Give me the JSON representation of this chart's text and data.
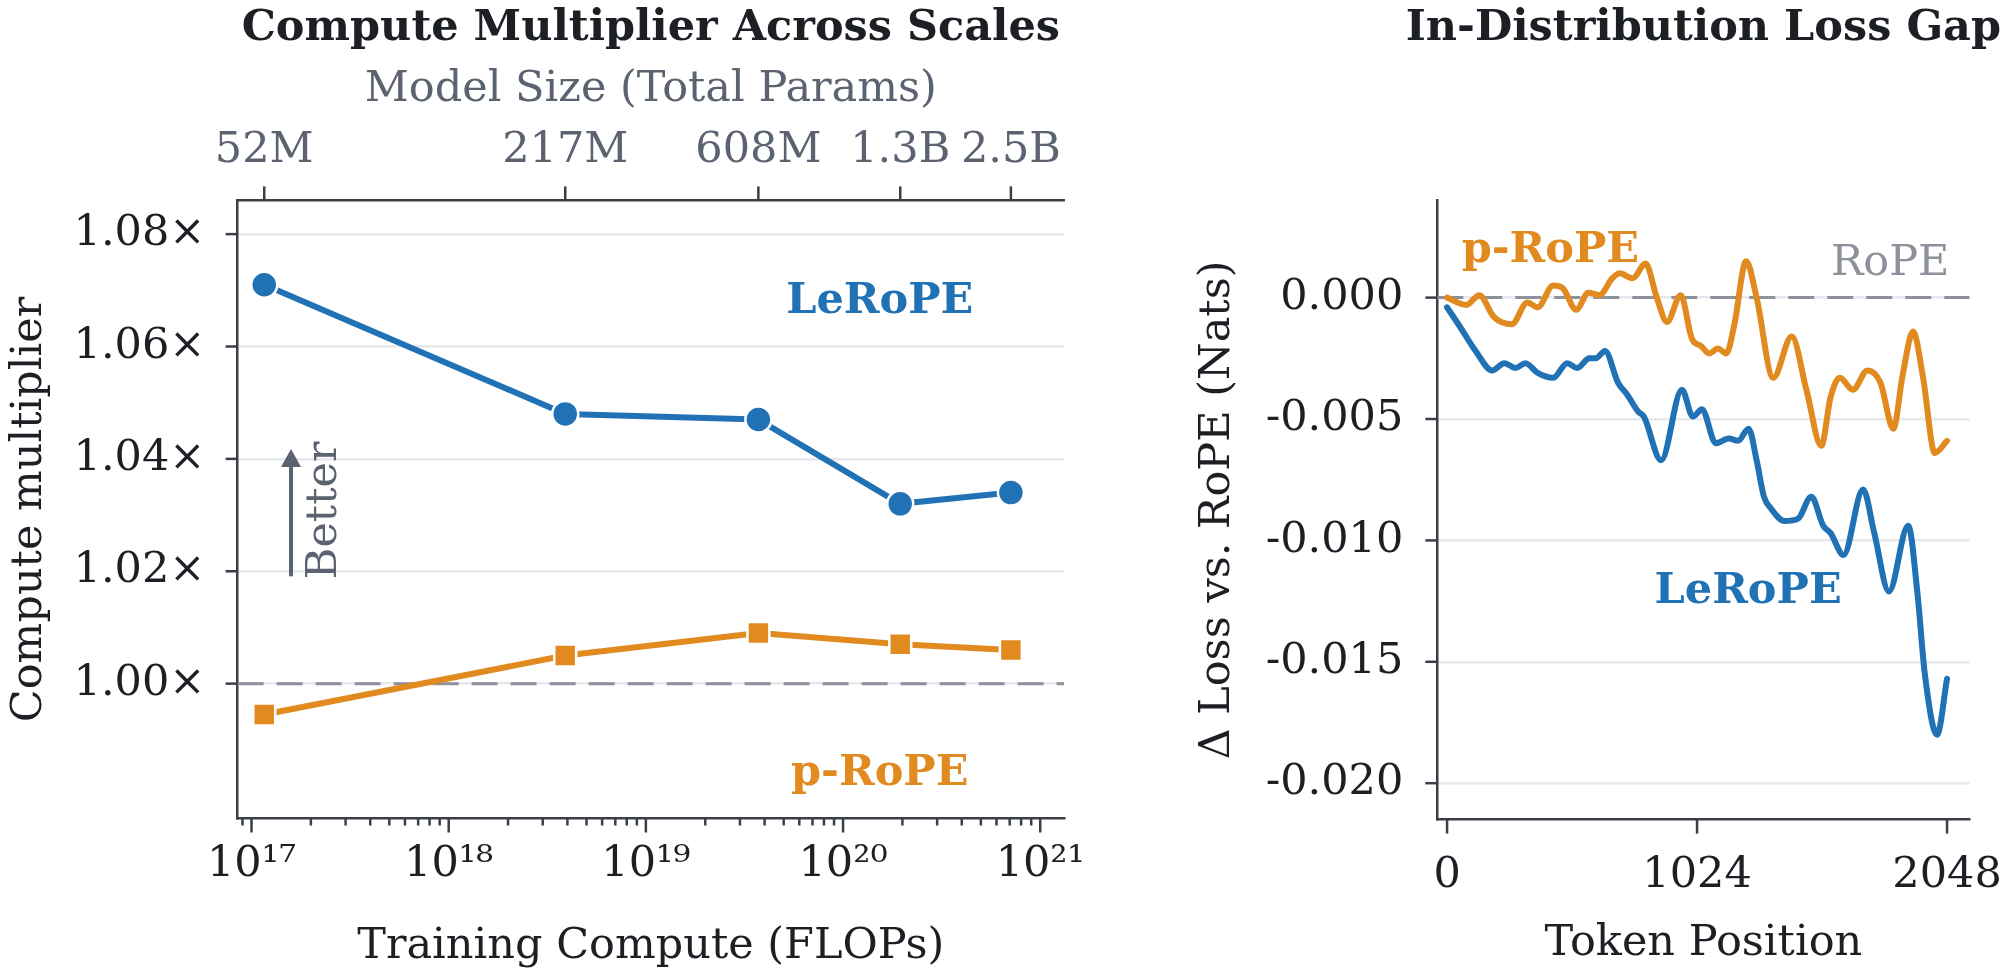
{
  "chart_data": [
    {
      "type": "line",
      "title": "Compute Multiplier Across Scales",
      "xlabel": "Training Compute (FLOPs)",
      "ylabel": "Compute multiplier",
      "x2label": "Model Size (Total Params)",
      "x": [
        1.16e+17,
        3.9e+18,
        3.72e+19,
        1.95e+20,
        7.1e+20
      ],
      "series": [
        {
          "name": "LeRoPE",
          "color": "#2171b5",
          "marker": "circle",
          "values": [
            1.071,
            1.048,
            1.047,
            1.032,
            1.034
          ]
        },
        {
          "name": "p-RoPE",
          "color": "#e08a1f",
          "marker": "square",
          "values": [
            0.9945,
            1.005,
            1.009,
            1.007,
            1.006
          ]
        }
      ],
      "log": "x",
      "xlim": [
        8.5e+16,
        1.32e+21
      ],
      "xticks": [
        {
          "value": 9e+16,
          "label": null
        },
        {
          "value": 1e+17,
          "label": "10¹⁷"
        },
        {
          "value": 2e+17,
          "label": null
        },
        {
          "value": 3e+17,
          "label": null
        },
        {
          "value": 4e+17,
          "label": null
        },
        {
          "value": 5e+17,
          "label": null
        },
        {
          "value": 6e+17,
          "label": null
        },
        {
          "value": 7e+17,
          "label": null
        },
        {
          "value": 8e+17,
          "label": null
        },
        {
          "value": 9e+17,
          "label": null
        },
        {
          "value": 1e+18,
          "label": "10¹⁸"
        },
        {
          "value": 2e+18,
          "label": null
        },
        {
          "value": 3e+18,
          "label": null
        },
        {
          "value": 4e+18,
          "label": null
        },
        {
          "value": 5e+18,
          "label": null
        },
        {
          "value": 6e+18,
          "label": null
        },
        {
          "value": 7e+18,
          "label": null
        },
        {
          "value": 8e+18,
          "label": null
        },
        {
          "value": 9e+18,
          "label": null
        },
        {
          "value": 1e+19,
          "label": "10¹⁹"
        },
        {
          "value": 2e+19,
          "label": null
        },
        {
          "value": 3e+19,
          "label": null
        },
        {
          "value": 4e+19,
          "label": null
        },
        {
          "value": 5e+19,
          "label": null
        },
        {
          "value": 6e+19,
          "label": null
        },
        {
          "value": 7e+19,
          "label": null
        },
        {
          "value": 8e+19,
          "label": null
        },
        {
          "value": 9e+19,
          "label": null
        },
        {
          "value": 1e+20,
          "label": "10²⁰"
        },
        {
          "value": 2e+20,
          "label": null
        },
        {
          "value": 3e+20,
          "label": null
        },
        {
          "value": 4e+20,
          "label": null
        },
        {
          "value": 5e+20,
          "label": null
        },
        {
          "value": 6e+20,
          "label": null
        },
        {
          "value": 7e+20,
          "label": null
        },
        {
          "value": 8e+20,
          "label": null
        },
        {
          "value": 9e+20,
          "label": null
        },
        {
          "value": 1e+21,
          "label": "10²¹"
        }
      ],
      "ylim": [
        0.976,
        1.086
      ],
      "yticks": [
        {
          "value": 1,
          "label": "1.00×"
        },
        {
          "value": 1.02,
          "label": "1.02×"
        },
        {
          "value": 1.04,
          "label": "1.04×"
        },
        {
          "value": 1.06,
          "label": "1.06×"
        },
        {
          "value": 1.08,
          "label": "1.08×"
        }
      ],
      "grid": "y",
      "ref_lines": [
        {
          "axis": "y",
          "value": 1,
          "color": "#8c919b",
          "line_style": "dashed"
        }
      ],
      "annotations": [
        "Better",
        {
          "text": "52M",
          "x": 1.16e+17
        },
        {
          "text": "217M",
          "x": 3.9e+18
        },
        {
          "text": "608M",
          "x": 3.72e+19
        },
        {
          "text": "1.3B",
          "x": 1.95e+20
        },
        {
          "text": "2.5B",
          "x": 7.1e+20
        }
      ]
    },
    {
      "type": "line",
      "title": "In-Distribution Loss Gap",
      "xlabel": "Token Position",
      "ylabel": "Δ Loss vs. RoPE (Nats)",
      "marker": "none",
      "series": [
        {
          "name": "LeRoPE",
          "color": "#2171b5",
          "x": [
            0,
            53,
            117,
            185,
            235,
            280,
            321,
            371,
            435,
            492,
            533,
            583,
            609,
            647,
            700,
            738,
            783,
            806,
            877,
            962,
            1007,
            1044,
            1101,
            1154,
            1192,
            1235,
            1268,
            1298,
            1328,
            1381,
            1438,
            1492,
            1541,
            1571,
            1624,
            1704,
            1750,
            1810,
            1889,
            1927,
            1957,
            2007,
            2048
          ],
          "values": [
            -0.0004,
            -0.0012,
            -0.0022,
            -0.003,
            -0.0027,
            -0.0029,
            -0.0027,
            -0.0031,
            -0.0033,
            -0.0027,
            -0.0029,
            -0.0025,
            -0.0025,
            -0.0022,
            -0.0035,
            -0.004,
            -0.0047,
            -0.0049,
            -0.0067,
            -0.0038,
            -0.0049,
            -0.0046,
            -0.006,
            -0.0058,
            -0.0059,
            -0.0054,
            -0.0067,
            -0.0082,
            -0.0087,
            -0.0092,
            -0.0091,
            -0.0082,
            -0.0094,
            -0.0097,
            -0.0106,
            -0.0079,
            -0.0097,
            -0.0121,
            -0.0094,
            -0.0122,
            -0.0155,
            -0.018,
            -0.0157
          ]
        },
        {
          "name": "p-RoPE",
          "color": "#e08a1f",
          "x": [
            0,
            79,
            132,
            192,
            265,
            329,
            371,
            435,
            473,
            529,
            579,
            624,
            677,
            707,
            760,
            813,
            859,
            901,
            957,
            1003,
            1041,
            1074,
            1109,
            1144,
            1177,
            1225,
            1268,
            1336,
            1412,
            1472,
            1533,
            1571,
            1609,
            1662,
            1722,
            1775,
            1828,
            1866,
            1909,
            1950,
            1998,
            2048
          ],
          "values": [
            0,
            -0.0003,
            0.0001,
            -0.0008,
            -0.0011,
            -0.0002,
            -0.0004,
            0.0005,
            0.0004,
            -0.0005,
            0.0002,
            0.0001,
            0.0008,
            0.001,
            0.0008,
            0.0014,
            0,
            -0.001,
            0.0001,
            -0.0017,
            -0.002,
            -0.0023,
            -0.0021,
            -0.0023,
            -0.0011,
            0.0015,
            0,
            -0.0033,
            -0.0016,
            -0.0038,
            -0.0061,
            -0.0041,
            -0.0033,
            -0.0038,
            -0.003,
            -0.0035,
            -0.0054,
            -0.0032,
            -0.0014,
            -0.0033,
            -0.0064,
            -0.0059
          ]
        }
      ],
      "xlim": [
        -40,
        2140
      ],
      "xticks": [
        0,
        1024,
        2048
      ],
      "ylim": [
        -0.0215,
        0.004
      ],
      "yticks": [
        {
          "value": -0.02,
          "label": "-0.020"
        },
        {
          "value": -0.015,
          "label": "-0.015"
        },
        {
          "value": -0.01,
          "label": "-0.010"
        },
        {
          "value": -0.005,
          "label": "-0.005"
        },
        {
          "value": 0,
          "label": "0.000"
        }
      ],
      "grid": "y",
      "ref_lines": [
        {
          "axis": "y",
          "value": 0,
          "label": "RoPE",
          "color": "#8c919b",
          "line_style": "dashed"
        }
      ]
    }
  ]
}
